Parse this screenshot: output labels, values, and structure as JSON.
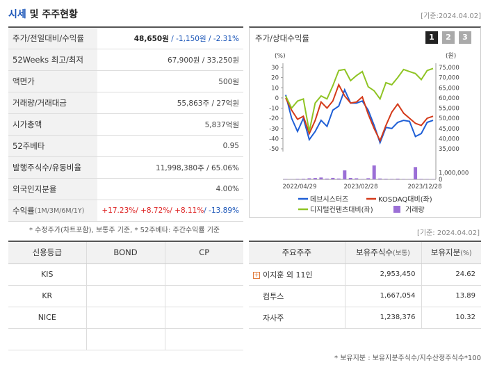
{
  "header": {
    "title_part1": "시세",
    "title_part2": " 및 주주현황",
    "date": "[기준:2024.04.02]"
  },
  "summary": {
    "rows": [
      {
        "label": "주가/전일대비/수익률",
        "v1": "48,650원",
        "v2": " / -1,150원 / -2.31%"
      },
      {
        "label": "52Weeks 최고/최저",
        "value": "67,900원 / 33,250원"
      },
      {
        "label": "액면가",
        "value": "500원"
      },
      {
        "label": "거래량/거래대금",
        "value": "55,863주 / 27억원"
      },
      {
        "label": "시가총액",
        "value": "5,837억원"
      },
      {
        "label": "52주베타",
        "value": "0.95"
      },
      {
        "label": "발행주식수/유동비율",
        "value": "11,998,380주 / 65.06%"
      },
      {
        "label": "외국인지분율",
        "value": "4.00%"
      },
      {
        "label": "수익률",
        "sub": " (1M/3M/6M/1Y)",
        "r1": "+17.23%",
        "r2": "/ +8.72%",
        "r3": "/ +8.11%",
        "r4": "/ -13.89%"
      }
    ]
  },
  "chart_panel": {
    "title": "주가/상대수익률",
    "page_buttons": [
      "1",
      "2",
      "3"
    ],
    "active_page": "1"
  },
  "chart_data": {
    "type": "line",
    "left_axis_unit": "%",
    "right_axis_unit": "원",
    "left_axis_ticks": [
      "30",
      "20",
      "10",
      "0",
      "-10",
      "-20",
      "-30",
      "-40",
      "-50"
    ],
    "right_axis_ticks": [
      "75,000",
      "70,000",
      "65,000",
      "60,000",
      "55,000",
      "50,000",
      "45,000",
      "40,000",
      "35,000"
    ],
    "volume_axis_ticks": [
      "1,000,000",
      "0"
    ],
    "x_tick_labels": [
      "2022/04/29",
      "2023/02/28",
      "2023/12/28"
    ],
    "ylim_left": [
      -50,
      30
    ],
    "ylim_right": [
      35000,
      75000
    ],
    "series": [
      {
        "name": "데브시스터즈",
        "color": "#1f5fd6",
        "axis": "left",
        "values": [
          3,
          -20,
          -33,
          -20,
          -41,
          -33,
          -22,
          -28,
          -12,
          -8,
          8,
          -5,
          -5,
          -3,
          -12,
          -27,
          -44,
          -29,
          -30,
          -24,
          -22,
          -23,
          -38,
          -35,
          -24,
          -22
        ]
      },
      {
        "name": "KOSDAQ대비(좌)",
        "color": "#d43a1a",
        "axis": "left",
        "values": [
          0,
          -12,
          -21,
          -18,
          -35,
          -22,
          -4,
          -10,
          -3,
          13,
          2,
          -5,
          -4,
          1,
          -16,
          -30,
          -42,
          -27,
          -14,
          -6,
          -15,
          -20,
          -25,
          -27,
          -20,
          -18
        ]
      },
      {
        "name": "디지털컨텐츠대비(좌)",
        "color": "#8fc424",
        "axis": "left",
        "values": [
          2,
          -10,
          -3,
          -1,
          -33,
          -5,
          2,
          -1,
          12,
          27,
          28,
          17,
          22,
          26,
          11,
          7,
          -1,
          15,
          13,
          20,
          28,
          26,
          24,
          18,
          27,
          29
        ]
      },
      {
        "name": "거래량",
        "color": "#9b6fd6",
        "axis": "volume",
        "type": "bar",
        "values": [
          60000,
          40000,
          80000,
          100000,
          160000,
          200000,
          280000,
          120000,
          220000,
          130000,
          1350000,
          210000,
          160000,
          60000,
          170000,
          2100000,
          130000,
          90000,
          70000,
          110000,
          60000,
          50000,
          1850000,
          70000,
          60000,
          40000
        ]
      }
    ],
    "volume_max": 2300000
  },
  "notes": {
    "left": "* 수정주가(차트포함), 보통주 기준, * 52주베타: 주간수익률 기준",
    "right": "[기준: 2024.04.02]",
    "bottom": "* 보유지분 : 보유지분주식수/지수산정주식수*100"
  },
  "credit": {
    "headers": [
      "신용등급",
      "BOND",
      "CP"
    ],
    "rows": [
      [
        "KIS",
        "",
        ""
      ],
      [
        "KR",
        "",
        ""
      ],
      [
        "NICE",
        "",
        ""
      ],
      [
        "",
        "",
        ""
      ]
    ]
  },
  "holders": {
    "h1": "주요주주",
    "h2": "보유주식수",
    "h2_sub": "(보통)",
    "h3": "보유지분",
    "h3_sub": "(%)",
    "rows": [
      {
        "name": "이지훈 외 11인",
        "shares": "2,953,450",
        "pct": "24.62",
        "expand": "+"
      },
      {
        "name": "컴투스",
        "shares": "1,667,054",
        "pct": "13.89"
      },
      {
        "name": "자사주",
        "shares": "1,238,376",
        "pct": "10.32"
      }
    ]
  }
}
